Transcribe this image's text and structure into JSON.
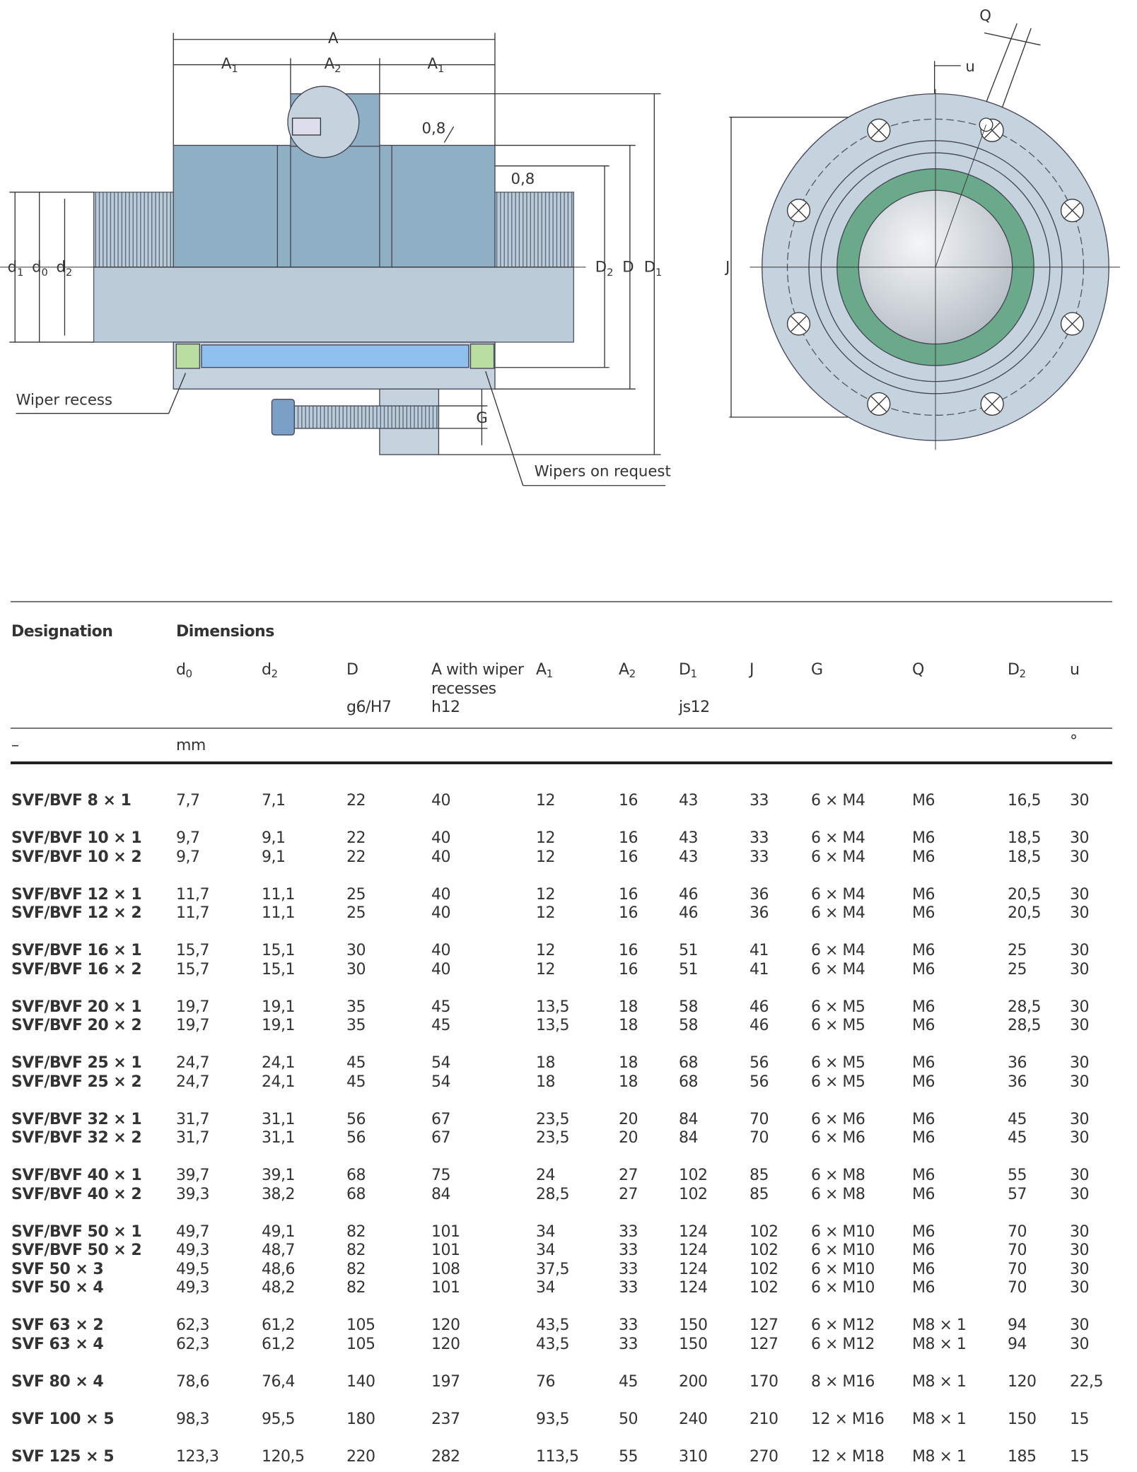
{
  "drawing": {
    "labels": {
      "A": "A",
      "A1_left": {
        "base": "A",
        "sub": "1"
      },
      "A2": {
        "base": "A",
        "sub": "2"
      },
      "A1_right": {
        "base": "A",
        "sub": "1"
      },
      "chamfer_top": "0,8",
      "chamfer_right": "0,8",
      "d1": {
        "base": "d",
        "sub": "1"
      },
      "d0": {
        "base": "d",
        "sub": "0"
      },
      "d2": {
        "base": "d",
        "sub": "2"
      },
      "D2": {
        "base": "D",
        "sub": "2"
      },
      "D": "D",
      "D1": {
        "base": "D",
        "sub": "1"
      },
      "J": "J",
      "G": "G",
      "Q": "Q",
      "u": "u",
      "wiper_recess": "Wiper recess",
      "wipers_on_request": "Wipers on request"
    },
    "colors": {
      "nut_body": "#8fb0c4",
      "shaft": "#bccbd8",
      "flange": "#c5d3de",
      "seal_ring": "#6aaa8a",
      "wiper": "#b9dca0",
      "ball_track": "#8fc0ee"
    }
  },
  "table": {
    "headers": {
      "designation": "Designation",
      "dimensions": "Dimensions",
      "columns": [
        {
          "key": "d0",
          "base": "d",
          "sub": "0",
          "tol": ""
        },
        {
          "key": "d2",
          "base": "d",
          "sub": "2",
          "tol": ""
        },
        {
          "key": "D",
          "base": "D",
          "sub": "",
          "tol": "g6/H7"
        },
        {
          "key": "A",
          "base": "A with wiper",
          "line2": "recesses",
          "sub": "",
          "tol": "h12"
        },
        {
          "key": "A1",
          "base": "A",
          "sub": "1",
          "tol": ""
        },
        {
          "key": "A2",
          "base": "A",
          "sub": "2",
          "tol": ""
        },
        {
          "key": "D1",
          "base": "D",
          "sub": "1",
          "tol": "js12"
        },
        {
          "key": "J",
          "base": "J",
          "sub": "",
          "tol": ""
        },
        {
          "key": "G",
          "base": "G",
          "sub": "",
          "tol": ""
        },
        {
          "key": "Q",
          "base": "Q",
          "sub": "",
          "tol": ""
        },
        {
          "key": "D2",
          "base": "D",
          "sub": "2",
          "tol": ""
        },
        {
          "key": "u",
          "base": "u",
          "sub": "",
          "tol": ""
        }
      ],
      "unit_designation": "–",
      "unit_mm": "mm",
      "unit_u": "°"
    },
    "groups": [
      [
        [
          "SVF/BVF 8 × 1",
          "7,7",
          "7,1",
          "22",
          "40",
          "12",
          "16",
          "43",
          "33",
          "6 × M4",
          "M6",
          "16,5",
          "30"
        ]
      ],
      [
        [
          "SVF/BVF 10 × 1",
          "9,7",
          "9,1",
          "22",
          "40",
          "12",
          "16",
          "43",
          "33",
          "6 × M4",
          "M6",
          "18,5",
          "30"
        ],
        [
          "SVF/BVF 10 × 2",
          "9,7",
          "9,1",
          "22",
          "40",
          "12",
          "16",
          "43",
          "33",
          "6 × M4",
          "M6",
          "18,5",
          "30"
        ]
      ],
      [
        [
          "SVF/BVF 12 × 1",
          "11,7",
          "11,1",
          "25",
          "40",
          "12",
          "16",
          "46",
          "36",
          "6 × M4",
          "M6",
          "20,5",
          "30"
        ],
        [
          "SVF/BVF 12 × 2",
          "11,7",
          "11,1",
          "25",
          "40",
          "12",
          "16",
          "46",
          "36",
          "6 × M4",
          "M6",
          "20,5",
          "30"
        ]
      ],
      [
        [
          "SVF/BVF 16 × 1",
          "15,7",
          "15,1",
          "30",
          "40",
          "12",
          "16",
          "51",
          "41",
          "6 × M4",
          "M6",
          "25",
          "30"
        ],
        [
          "SVF/BVF 16 × 2",
          "15,7",
          "15,1",
          "30",
          "40",
          "12",
          "16",
          "51",
          "41",
          "6 × M4",
          "M6",
          "25",
          "30"
        ]
      ],
      [
        [
          "SVF/BVF 20 × 1",
          "19,7",
          "19,1",
          "35",
          "45",
          "13,5",
          "18",
          "58",
          "46",
          "6 × M5",
          "M6",
          "28,5",
          "30"
        ],
        [
          "SVF/BVF 20 × 2",
          "19,7",
          "19,1",
          "35",
          "45",
          "13,5",
          "18",
          "58",
          "46",
          "6 × M5",
          "M6",
          "28,5",
          "30"
        ]
      ],
      [
        [
          "SVF/BVF 25 × 1",
          "24,7",
          "24,1",
          "45",
          "54",
          "18",
          "18",
          "68",
          "56",
          "6 × M5",
          "M6",
          "36",
          "30"
        ],
        [
          "SVF/BVF 25 × 2",
          "24,7",
          "24,1",
          "45",
          "54",
          "18",
          "18",
          "68",
          "56",
          "6 × M5",
          "M6",
          "36",
          "30"
        ]
      ],
      [
        [
          "SVF/BVF 32 × 1",
          "31,7",
          "31,1",
          "56",
          "67",
          "23,5",
          "20",
          "84",
          "70",
          "6 × M6",
          "M6",
          "45",
          "30"
        ],
        [
          "SVF/BVF 32 × 2",
          "31,7",
          "31,1",
          "56",
          "67",
          "23,5",
          "20",
          "84",
          "70",
          "6 × M6",
          "M6",
          "45",
          "30"
        ]
      ],
      [
        [
          "SVF/BVF 40 × 1",
          "39,7",
          "39,1",
          "68",
          "75",
          "24",
          "27",
          "102",
          "85",
          "6 × M8",
          "M6",
          "55",
          "30"
        ],
        [
          "SVF/BVF 40 × 2",
          "39,3",
          "38,2",
          "68",
          "84",
          "28,5",
          "27",
          "102",
          "85",
          "6 × M8",
          "M6",
          "57",
          "30"
        ]
      ],
      [
        [
          "SVF/BVF 50 × 1",
          "49,7",
          "49,1",
          "82",
          "101",
          "34",
          "33",
          "124",
          "102",
          "6 × M10",
          "M6",
          "70",
          "30"
        ],
        [
          "SVF/BVF 50 × 2",
          "49,3",
          "48,7",
          "82",
          "101",
          "34",
          "33",
          "124",
          "102",
          "6 × M10",
          "M6",
          "70",
          "30"
        ],
        [
          "SVF 50 × 3",
          "49,5",
          "48,6",
          "82",
          "108",
          "37,5",
          "33",
          "124",
          "102",
          "6 × M10",
          "M6",
          "70",
          "30"
        ],
        [
          "SVF 50 × 4",
          "49,3",
          "48,2",
          "82",
          "101",
          "34",
          "33",
          "124",
          "102",
          "6 × M10",
          "M6",
          "70",
          "30"
        ]
      ],
      [
        [
          "SVF 63 × 2",
          "62,3",
          "61,2",
          "105",
          "120",
          "43,5",
          "33",
          "150",
          "127",
          "6 × M12",
          "M8 × 1",
          "94",
          "30"
        ],
        [
          "SVF 63 × 4",
          "62,3",
          "61,2",
          "105",
          "120",
          "43,5",
          "33",
          "150",
          "127",
          "6 × M12",
          "M8 × 1",
          "94",
          "30"
        ]
      ],
      [
        [
          "SVF 80 × 4",
          "78,6",
          "76,4",
          "140",
          "197",
          "76",
          "45",
          "200",
          "170",
          "8 × M16",
          "M8 × 1",
          "120",
          "22,5"
        ]
      ],
      [
        [
          "SVF 100 × 5",
          "98,3",
          "95,5",
          "180",
          "237",
          "93,5",
          "50",
          "240",
          "210",
          "12 × M16",
          "M8 × 1",
          "150",
          "15"
        ]
      ],
      [
        [
          "SVF 125 × 5",
          "123,3",
          "120,5",
          "220",
          "282",
          "113,5",
          "55",
          "310",
          "270",
          "12 × M18",
          "M8 × 1",
          "185",
          "15"
        ]
      ]
    ]
  }
}
